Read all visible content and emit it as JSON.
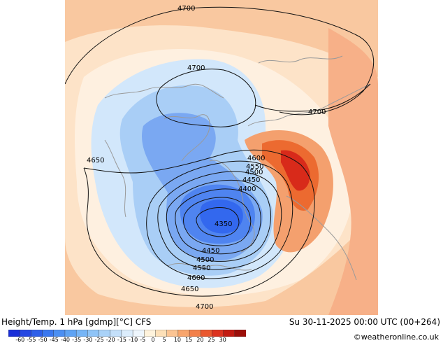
{
  "header": {
    "title_left": "Height/Temp. 1 hPa [gdmp][°C] CFS",
    "title_right": "Su 30-11-2025 00:00 UTC (00+264)",
    "credit": "©weatheronline.co.uk"
  },
  "colors": {
    "warm_light": "#fde0c0",
    "warm_mid": "#f7b48a",
    "warm_strong": "#ee6a2c",
    "warm_max": "#d8261a",
    "cold_light": "#d6e9fb",
    "cold_mid": "#a9cdf5",
    "cold_strong": "#6e9ff0",
    "cold_max": "#2d6ff0",
    "outside": "#ffffff"
  },
  "legend": {
    "unit": "°C",
    "ticks": [
      "-60",
      "-55",
      "-50",
      "-45",
      "-40",
      "-35",
      "-30",
      "-25",
      "-20",
      "-15",
      "-10",
      "-5",
      "0",
      "5",
      "10",
      "15",
      "20",
      "25",
      "30"
    ],
    "colors": [
      "#1a2fd8",
      "#2547e2",
      "#2f5fe8",
      "#3b78ee",
      "#4b8ff2",
      "#5ea3f4",
      "#76b5f6",
      "#8fc4f7",
      "#a9d2f8",
      "#c4e0fa",
      "#dcedfc",
      "#eef6fd",
      "#fff3dc",
      "#fde0b8",
      "#fbc493",
      "#f8a56c",
      "#f2804a",
      "#e9582f",
      "#dc3320",
      "#c21b12",
      "#9c0f0a"
    ]
  },
  "contours": {
    "labels": [
      {
        "text": "4700",
        "id": "c4700-top"
      },
      {
        "text": "4700",
        "id": "c4700-inner"
      },
      {
        "text": "4700",
        "id": "c4700-right"
      },
      {
        "text": "4650",
        "id": "c4650-left"
      },
      {
        "text": "4600",
        "id": "c4600-top"
      },
      {
        "text": "4550",
        "id": "c4550-top"
      },
      {
        "text": "4500",
        "id": "c4500-top"
      },
      {
        "text": "4450",
        "id": "c4450-top"
      },
      {
        "text": "4400",
        "id": "c4400-top"
      },
      {
        "text": "4350",
        "id": "c4350-center"
      },
      {
        "text": "4450",
        "id": "c4450-bottom"
      },
      {
        "text": "4500",
        "id": "c4500-bottom"
      },
      {
        "text": "4550",
        "id": "c4550-bottom"
      },
      {
        "text": "4600",
        "id": "c4600-bottom"
      },
      {
        "text": "4650",
        "id": "c4650-bottom"
      },
      {
        "text": "4700",
        "id": "c4700-bottom"
      }
    ]
  }
}
